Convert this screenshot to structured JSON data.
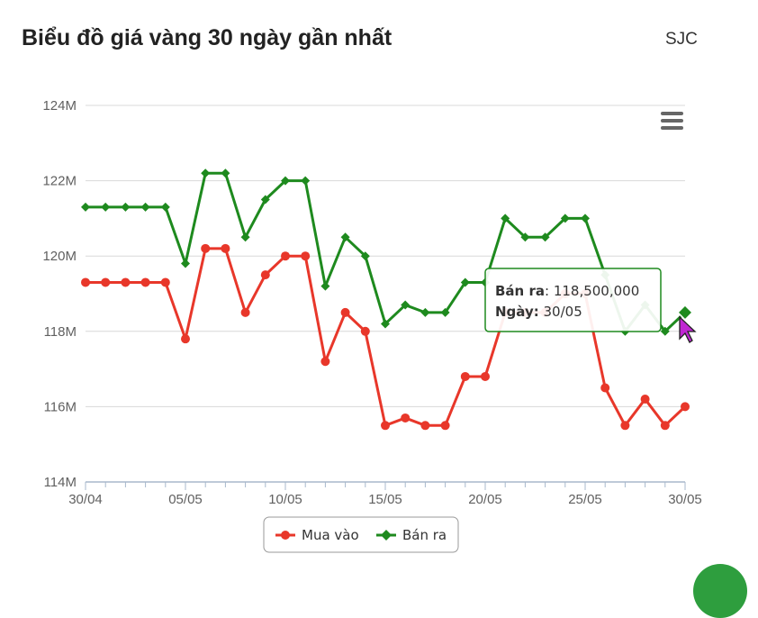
{
  "header": {
    "title": "Biểu đồ giá vàng 30 ngày gần nhất",
    "brand": "SJC"
  },
  "colors": {
    "buy": "#e8372a",
    "sell": "#1e8a1e",
    "tooltip_border": "#1e8a1e"
  },
  "icons": {
    "menu": "hamburger-menu-icon",
    "cursor": "pointer-cursor-icon"
  },
  "chart_data": {
    "type": "line",
    "x": [
      "30/04",
      "01/05",
      "02/05",
      "03/05",
      "04/05",
      "05/05",
      "06/05",
      "07/05",
      "08/05",
      "09/05",
      "10/05",
      "11/05",
      "12/05",
      "13/05",
      "14/05",
      "15/05",
      "16/05",
      "17/05",
      "18/05",
      "19/05",
      "20/05",
      "21/05",
      "22/05",
      "23/05",
      "24/05",
      "25/05",
      "26/05",
      "27/05",
      "28/05",
      "29/05",
      "30/05"
    ],
    "x_tick_labels": [
      "30/04",
      "05/05",
      "10/05",
      "15/05",
      "20/05",
      "25/05",
      "30/05"
    ],
    "y_tick_labels": [
      "114M",
      "116M",
      "118M",
      "120M",
      "122M",
      "124M"
    ],
    "ylim": [
      114000000,
      124000000
    ],
    "series": [
      {
        "name": "Mua vào",
        "color": "#e8372a",
        "marker": "circle",
        "values": [
          119300000,
          119300000,
          119300000,
          119300000,
          119300000,
          117800000,
          120200000,
          120200000,
          118500000,
          119500000,
          120000000,
          120000000,
          117200000,
          118500000,
          118000000,
          115500000,
          115700000,
          115500000,
          115500000,
          116800000,
          116800000,
          118500000,
          118500000,
          118500000,
          119000000,
          119000000,
          116500000,
          115500000,
          116200000,
          115500000,
          116000000
        ]
      },
      {
        "name": "Bán ra",
        "color": "#1e8a1e",
        "marker": "diamond",
        "values": [
          121300000,
          121300000,
          121300000,
          121300000,
          121300000,
          119800000,
          122200000,
          122200000,
          120500000,
          121500000,
          122000000,
          122000000,
          119200000,
          120500000,
          120000000,
          118200000,
          118700000,
          118500000,
          118500000,
          119300000,
          119300000,
          121000000,
          120500000,
          120500000,
          121000000,
          121000000,
          119500000,
          118000000,
          118700000,
          118000000,
          118500000
        ]
      }
    ],
    "legend": {
      "position": "bottom-center",
      "items": [
        "Mua vào",
        "Bán ra"
      ]
    },
    "tooltip": {
      "series_label": "Bán ra",
      "value_text": "118,500,000",
      "date_label": "Ngày",
      "date_text": "30/05",
      "point_index": 30
    },
    "grid": true
  }
}
